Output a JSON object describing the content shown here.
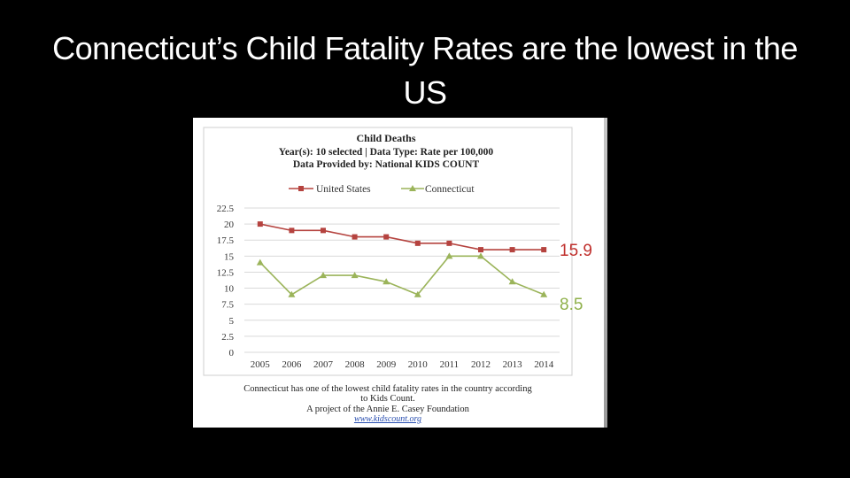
{
  "slide": {
    "title": "Connecticut’s Child Fatality Rates are the lowest in the US"
  },
  "callouts": {
    "us_value": "15.9",
    "ct_value": "8.5"
  },
  "chart_data": {
    "type": "line",
    "title": "Child Deaths",
    "subtitle_1": "Year(s): 10 selected | Data Type: Rate per 100,000",
    "subtitle_2": "Data Provided by: National KIDS COUNT",
    "xlabel": "",
    "ylabel": "",
    "x": [
      "2005",
      "2006",
      "2007",
      "2008",
      "2009",
      "2010",
      "2011",
      "2012",
      "2013",
      "2014"
    ],
    "ylim": [
      0,
      22.5
    ],
    "y_ticks": [
      "0",
      "2.5",
      "5",
      "7.5",
      "10",
      "12.5",
      "15",
      "17.5",
      "20",
      "22.5"
    ],
    "grid": true,
    "legend_position": "top",
    "series": [
      {
        "name": "United States",
        "color": "#b5433f",
        "marker": "square",
        "values": [
          20,
          19,
          19,
          18,
          18,
          17,
          17,
          16,
          16,
          16
        ]
      },
      {
        "name": "Connecticut",
        "color": "#9bb45a",
        "marker": "triangle",
        "values": [
          14,
          9,
          12,
          12,
          11,
          9,
          15,
          15,
          11,
          9
        ]
      }
    ],
    "footnote_1": "Connecticut has one of the lowest child fatality rates in the country according",
    "footnote_2": "to Kids Count.",
    "footnote_3": "A project of the Annie E. Casey Foundation",
    "footnote_link": "www.kidscount.org"
  }
}
